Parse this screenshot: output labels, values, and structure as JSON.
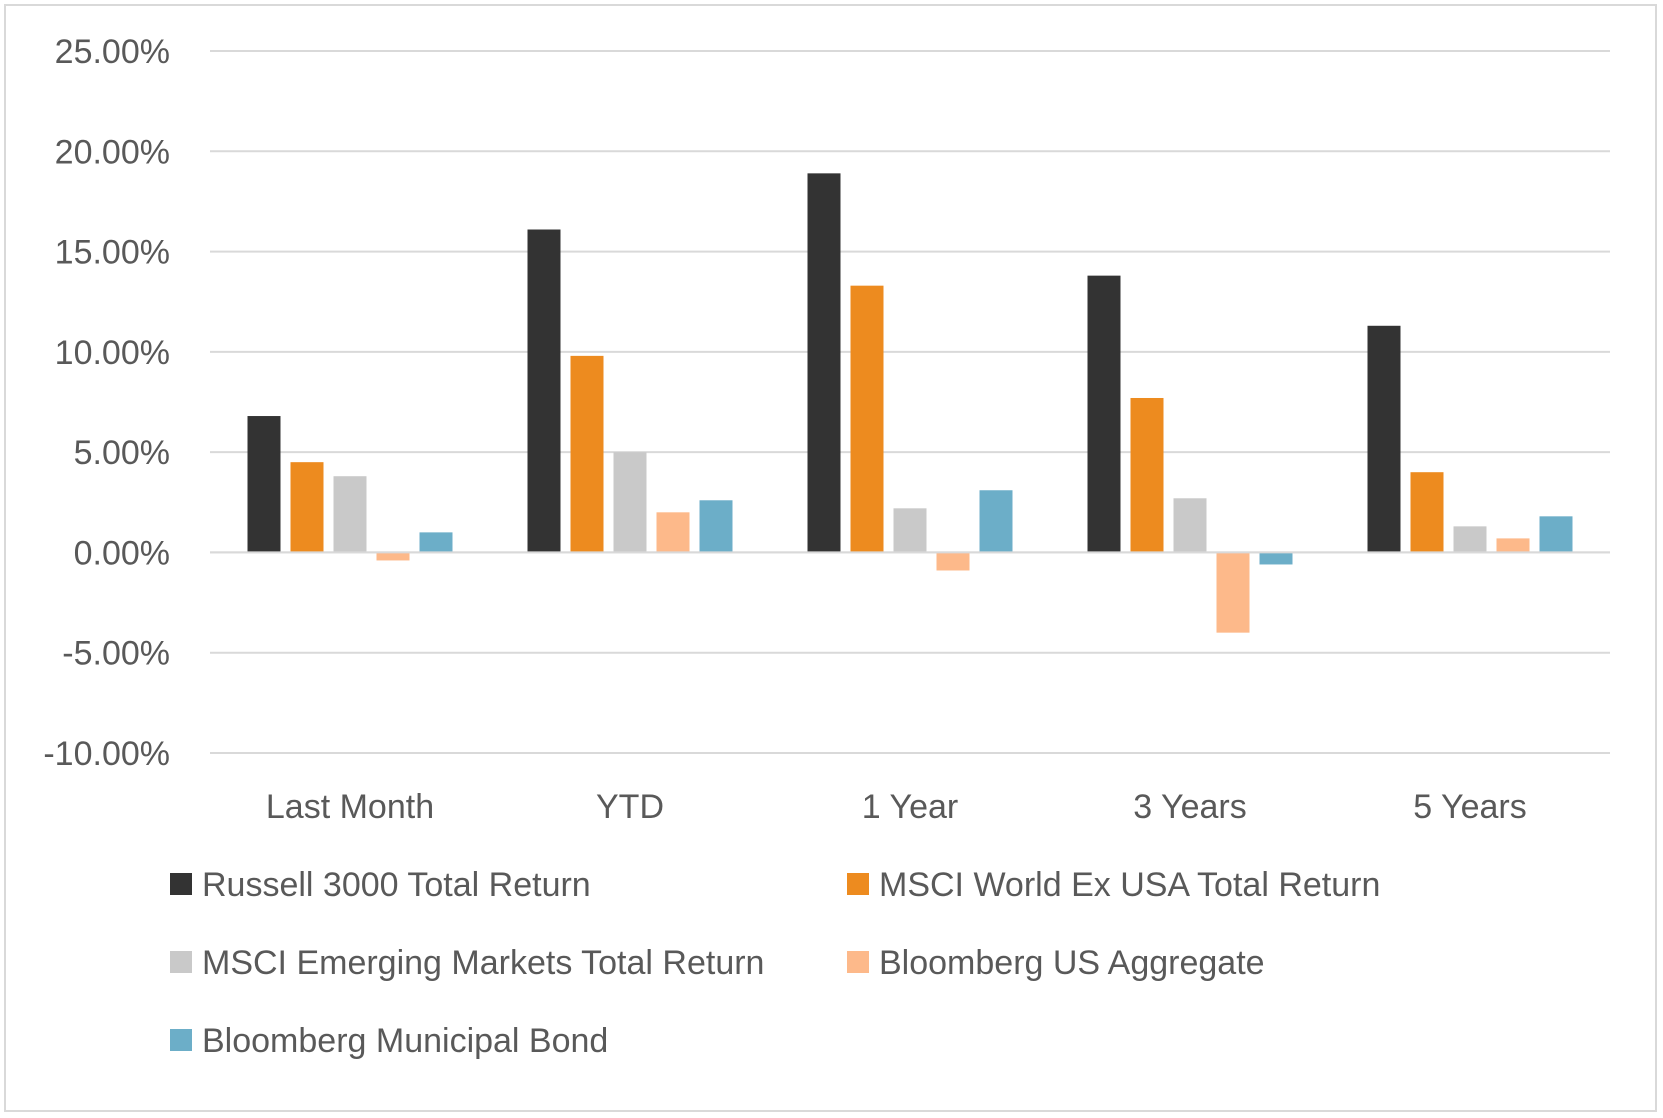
{
  "chart_data": {
    "type": "bar",
    "title": "",
    "xlabel": "",
    "ylabel": "",
    "ylim": [
      -0.1,
      0.25
    ],
    "ytick_step": 0.05,
    "ytick_labels": [
      "25.00%",
      "20.00%",
      "15.00%",
      "10.00%",
      "5.00%",
      "0.00%",
      "-5.00%",
      "-10.00%"
    ],
    "grid": true,
    "legend_position": "bottom",
    "categories": [
      "Last Month",
      "YTD",
      "1 Year",
      "3 Years",
      "5 Years"
    ],
    "series": [
      {
        "name": "Russell 3000 Total Return",
        "color": "#333333",
        "values": [
          0.068,
          0.161,
          0.189,
          0.138,
          0.113
        ]
      },
      {
        "name": "MSCI World Ex USA Total Return",
        "color": "#ed8b1f",
        "values": [
          0.045,
          0.098,
          0.133,
          0.077,
          0.04
        ]
      },
      {
        "name": "MSCI Emerging Markets Total Return",
        "color": "#c9c9c9",
        "values": [
          0.038,
          0.05,
          0.022,
          0.027,
          0.013
        ]
      },
      {
        "name": "Bloomberg US Aggregate",
        "color": "#fdb98a",
        "values": [
          -0.004,
          0.02,
          -0.009,
          -0.04,
          0.007
        ]
      },
      {
        "name": "Bloomberg Municipal Bond",
        "color": "#6caec8",
        "values": [
          0.01,
          0.026,
          0.031,
          -0.006,
          0.018
        ]
      }
    ]
  }
}
